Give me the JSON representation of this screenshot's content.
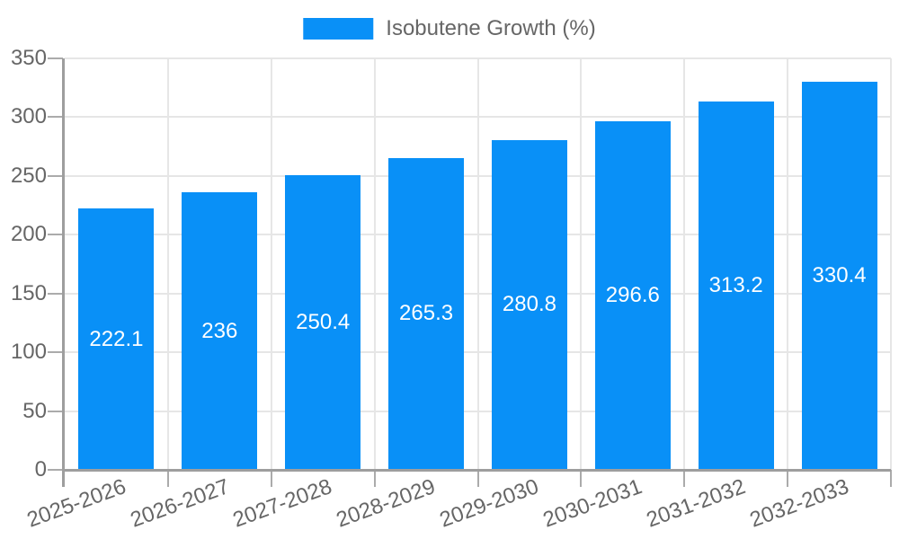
{
  "legend": {
    "label": "Isobutene Growth (%)"
  },
  "colors": {
    "bar": "#0990f7",
    "grid": "#e6e6e6",
    "axis": "#9e9e9e",
    "tick_mark": "#ababab",
    "tick_text": "#666666",
    "value_text": "#ffffff",
    "background": "#ffffff"
  },
  "chart_data": {
    "type": "bar",
    "title": "",
    "legend_label": "Isobutene Growth (%)",
    "legend_position": "top",
    "categories": [
      "2025-2026",
      "2026-2027",
      "2027-2028",
      "2028-2029",
      "2029-2030",
      "2030-2031",
      "2031-2032",
      "2032-2033"
    ],
    "values": [
      222.1,
      236,
      250.4,
      265.3,
      280.8,
      296.6,
      313.2,
      330.4
    ],
    "value_labels": [
      "222.1",
      "236",
      "250.4",
      "265.3",
      "280.8",
      "296.6",
      "313.2",
      "330.4"
    ],
    "value_label_position": "inside-center",
    "xlabel": "",
    "ylabel": "",
    "ylim": [
      0,
      350
    ],
    "yticks": [
      0,
      50,
      100,
      150,
      200,
      250,
      300,
      350
    ],
    "grid": true,
    "x_tick_rotation_deg": -20
  }
}
